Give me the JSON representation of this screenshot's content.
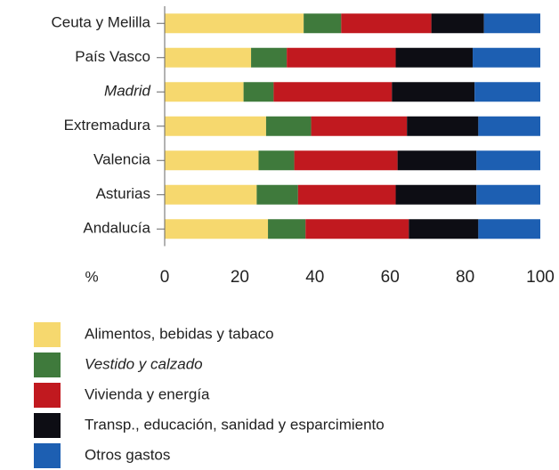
{
  "chart_data": {
    "type": "stacked_barh",
    "categories": [
      "Ceuta y Melilla",
      "País Vasco",
      "Madrid",
      "Extremadura",
      "Valencia",
      "Asturias",
      "Andalucía"
    ],
    "series": [
      {
        "name": "Alimentos, bebidas y tabaco",
        "color": "#f6d86e",
        "values": [
          37,
          23,
          21,
          27,
          25,
          24.5,
          27.5
        ]
      },
      {
        "name": "Vestido y calzado",
        "color": "#3f7a3c",
        "values": [
          10,
          9.5,
          8,
          12,
          9.5,
          11,
          10
        ]
      },
      {
        "name": "Vivienda y energía",
        "color": "#c1191f",
        "values": [
          24,
          29,
          31.5,
          25.5,
          27.5,
          26,
          27.5
        ]
      },
      {
        "name": "Transp., educación, sanidad y esparcimiento",
        "color": "#0d0d14",
        "values": [
          14,
          20.5,
          22,
          19,
          21,
          21.5,
          18.5
        ]
      },
      {
        "name": "Otros gastos",
        "color": "#1d5fb2",
        "values": [
          15,
          18,
          17.5,
          16.5,
          17,
          17,
          16.5
        ]
      }
    ],
    "xlabel": "%",
    "xlim": [
      0,
      100
    ],
    "xticks": [
      0,
      20,
      40,
      60,
      80,
      100
    ]
  }
}
